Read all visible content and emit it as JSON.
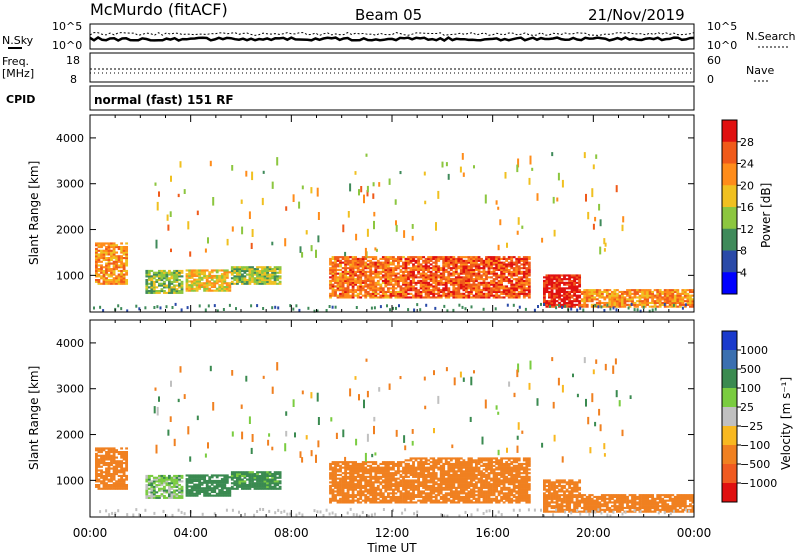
{
  "header": {
    "station": "McMurdo (fitACF)",
    "beam": "Beam 05",
    "date": "21/Nov/2019"
  },
  "summary": {
    "left_label_1": "N.Sky",
    "left_ticks_1": [
      "10^5",
      "10^0"
    ],
    "right_label_1": "N.Search",
    "right_ticks_1": [
      "10^5",
      "10^0"
    ],
    "left_label_2a": "Freq.",
    "left_label_2b": "[MHz]",
    "left_ticks_2": [
      "18",
      "8"
    ],
    "right_label_2": "Nave",
    "right_ticks_2": [
      "60",
      "0"
    ],
    "cpid_label": "CPID",
    "cpid_text": "normal (fast) 151 RF"
  },
  "colors": {
    "power": [
      "#0000ff",
      "#2a4aa8",
      "#3f8a5a",
      "#8cc63f",
      "#f0c020",
      "#ff8c1a",
      "#f05a1a",
      "#e01010"
    ],
    "velocity": [
      "#1a3acc",
      "#3a6fb0",
      "#3a8a50",
      "#7acc40",
      "#c0c0c0",
      "#f8b820",
      "#f08020",
      "#f05a20",
      "#e01010"
    ]
  },
  "chart_data": [
    {
      "type": "heatmap",
      "ylabel": "Slant Range [km]",
      "yticks": [
        "1000",
        "2000",
        "3000",
        "4000"
      ],
      "ylim": [
        200,
        4500
      ],
      "colorbar_label": "Power [dB]",
      "colorbar_ticks": [
        "4",
        "8",
        "12",
        "16",
        "20",
        "24",
        "28"
      ],
      "colorbar_range": [
        0,
        32
      ],
      "echo_bands": [
        {
          "t": [
            0.2,
            1.5
          ],
          "range": [
            800,
            1700
          ],
          "power": 22
        },
        {
          "t": [
            2.2,
            3.7
          ],
          "range": [
            600,
            1100
          ],
          "power": 14
        },
        {
          "t": [
            3.8,
            5.5
          ],
          "range": [
            650,
            1100
          ],
          "power": 18
        },
        {
          "t": [
            5.6,
            7.5
          ],
          "range": [
            800,
            1200
          ],
          "power": 14
        },
        {
          "t": [
            9.5,
            12.5
          ],
          "range": [
            500,
            1400
          ],
          "power": 24
        },
        {
          "t": [
            12.5,
            17.5
          ],
          "range": [
            500,
            1400
          ],
          "power": 26
        },
        {
          "t": [
            18.0,
            19.5
          ],
          "range": [
            300,
            1000
          ],
          "power": 30
        },
        {
          "t": [
            19.5,
            24.0
          ],
          "range": [
            300,
            700
          ],
          "power": 22
        }
      ]
    },
    {
      "type": "heatmap",
      "ylabel": "Slant Range [km]",
      "yticks": [
        "1000",
        "2000",
        "3000",
        "4000"
      ],
      "ylim": [
        200,
        4500
      ],
      "xlabel": "Time UT",
      "xticks": [
        "00:00",
        "04:00",
        "08:00",
        "12:00",
        "16:00",
        "20:00",
        "00:00"
      ],
      "xlim": [
        0,
        24
      ],
      "colorbar_label": "Velocity [m s⁻¹]",
      "colorbar_ticks": [
        "1000",
        "500",
        "100",
        "25",
        "−25",
        "−100",
        "−500",
        "−1000"
      ],
      "echo_bands": [
        {
          "t": [
            0.2,
            1.5
          ],
          "range": [
            800,
            1700
          ],
          "velocity": -300
        },
        {
          "t": [
            2.2,
            3.7
          ],
          "range": [
            600,
            1100
          ],
          "velocity": 60
        },
        {
          "t": [
            3.8,
            5.5
          ],
          "range": [
            650,
            1100
          ],
          "velocity": 200
        },
        {
          "t": [
            5.6,
            7.5
          ],
          "range": [
            800,
            1200
          ],
          "velocity": 150
        },
        {
          "t": [
            9.5,
            12.5
          ],
          "range": [
            500,
            1400
          ],
          "velocity": -300
        },
        {
          "t": [
            12.5,
            17.5
          ],
          "range": [
            500,
            1500
          ],
          "velocity": -350
        },
        {
          "t": [
            18.0,
            19.5
          ],
          "range": [
            300,
            1000
          ],
          "velocity": -250
        },
        {
          "t": [
            19.5,
            24.0
          ],
          "range": [
            300,
            700
          ],
          "velocity": -300
        }
      ]
    }
  ]
}
